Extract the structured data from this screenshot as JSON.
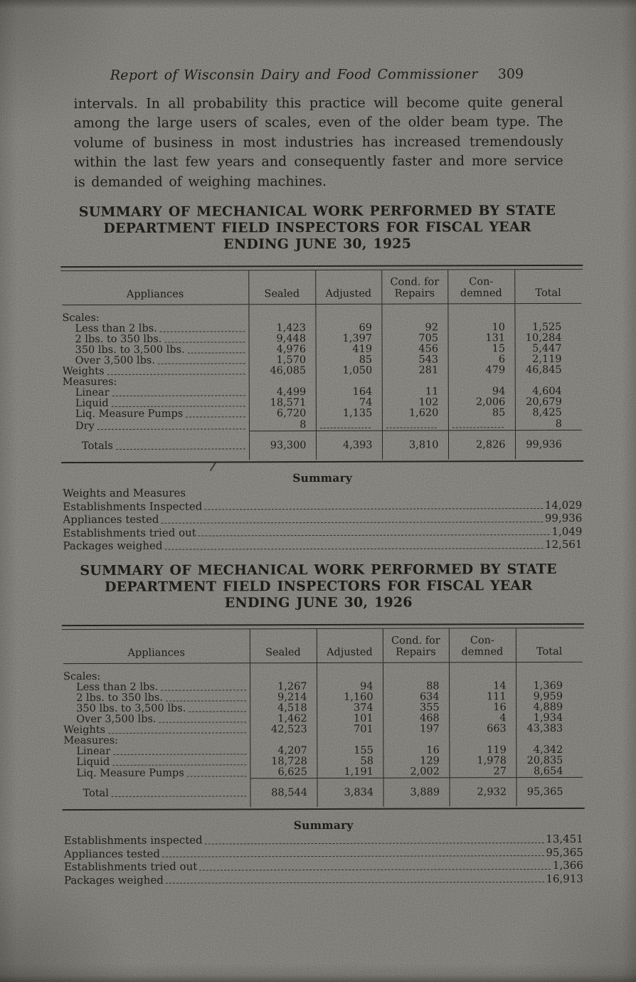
{
  "header": {
    "title": "Report of Wisconsin Dairy and Food Commissioner",
    "page_number": "309"
  },
  "intro_paragraph": "intervals.  In all probability this practice will become quite general among the large users of scales, even of the older beam type.  The volume of business in most industries has increased tremendously within the last few years and consequently faster and more service is demanded of weighing machines.",
  "tables": [
    {
      "caption": [
        "SUMMARY OF MECHANICAL WORK PERFORMED BY STATE",
        "DEPARTMENT FIELD INSPECTORS FOR FISCAL YEAR",
        "ENDING JUNE 30, 1925"
      ],
      "columns": [
        "Appliances",
        "Sealed",
        "Adjusted",
        "Cond. for\nRepairs",
        "Con-\ndemned",
        "Total"
      ],
      "rows": [
        {
          "label": "Scales:",
          "group": true
        },
        {
          "label": "Less than 2 lbs.",
          "indent": true,
          "values": [
            "1,423",
            "69",
            "92",
            "10",
            "1,525"
          ]
        },
        {
          "label": "2 lbs. to 350 lbs.",
          "indent": true,
          "values": [
            "9,448",
            "1,397",
            "705",
            "131",
            "10,284"
          ]
        },
        {
          "label": "350 lbs. to 3,500 lbs.",
          "indent": true,
          "values": [
            "4,976",
            "419",
            "456",
            "15",
            "5,447"
          ]
        },
        {
          "label": "Over 3,500 lbs.",
          "indent": true,
          "values": [
            "1,570",
            "85",
            "543",
            "6",
            "2,119"
          ]
        },
        {
          "label": "Weights",
          "values": [
            "46,085",
            "1,050",
            "281",
            "479",
            "46,845"
          ]
        },
        {
          "label": "Measures:",
          "group": true
        },
        {
          "label": "Linear",
          "indent": true,
          "values": [
            "4,499",
            "164",
            "11",
            "94",
            "4,604"
          ]
        },
        {
          "label": "Liquid",
          "indent": true,
          "values": [
            "18,571",
            "74",
            "102",
            "2,006",
            "20,679"
          ]
        },
        {
          "label": "Liq. Measure Pumps",
          "indent": true,
          "values": [
            "6,720",
            "1,135",
            "1,620",
            "85",
            "8,425"
          ]
        },
        {
          "label": "Dry",
          "indent": true,
          "values": [
            "8",
            null,
            null,
            null,
            "8"
          ]
        }
      ],
      "total_row": {
        "label": "Totals",
        "values": [
          "93,300",
          "4,393",
          "3,810",
          "2,826",
          "99,936"
        ]
      },
      "summary": {
        "heading": "Summary",
        "subheading": "Weights and Measures",
        "items": [
          [
            "Establishments Inspected",
            "14,029"
          ],
          [
            "Appliances tested",
            "99,936"
          ],
          [
            "Establishments tried out",
            "1,049"
          ],
          [
            "Packages weighed",
            "12,561"
          ]
        ]
      }
    },
    {
      "caption": [
        "SUMMARY OF MECHANICAL WORK PERFORMED BY STATE",
        "DEPARTMENT FIELD INSPECTORS FOR FISCAL YEAR",
        "ENDING JUNE 30, 1926"
      ],
      "columns": [
        "Appliances",
        "Sealed",
        "Adjusted",
        "Cond. for\nRepairs",
        "Con-\ndemned",
        "Total"
      ],
      "rows": [
        {
          "label": "Scales:",
          "group": true
        },
        {
          "label": "Less than 2 lbs.",
          "indent": true,
          "values": [
            "1,267",
            "94",
            "88",
            "14",
            "1,369"
          ]
        },
        {
          "label": "2 lbs. to 350 lbs.",
          "indent": true,
          "values": [
            "9,214",
            "1,160",
            "634",
            "111",
            "9,959"
          ]
        },
        {
          "label": "350 lbs. to 3,500 lbs.",
          "indent": true,
          "values": [
            "4,518",
            "374",
            "355",
            "16",
            "4,889"
          ]
        },
        {
          "label": "Over 3,500 lbs.",
          "indent": true,
          "values": [
            "1,462",
            "101",
            "468",
            "4",
            "1,934"
          ]
        },
        {
          "label": "Weights",
          "values": [
            "42,523",
            "701",
            "197",
            "663",
            "43,383"
          ]
        },
        {
          "label": "Measures:",
          "group": true
        },
        {
          "label": "Linear",
          "indent": true,
          "values": [
            "4,207",
            "155",
            "16",
            "119",
            "4,342"
          ]
        },
        {
          "label": "Liquid",
          "indent": true,
          "values": [
            "18,728",
            "58",
            "129",
            "1,978",
            "20,835"
          ]
        },
        {
          "label": "Liq. Measure Pumps",
          "indent": true,
          "values": [
            "6,625",
            "1,191",
            "2,002",
            "27",
            "8,654"
          ]
        }
      ],
      "total_row": {
        "label": "Total",
        "values": [
          "88,544",
          "3,834",
          "3,889",
          "2,932",
          "95,365"
        ]
      },
      "summary": {
        "heading": "Summary",
        "items": [
          [
            "Establishments inspected",
            "13,451"
          ],
          [
            "Appliances tested",
            "95,365"
          ],
          [
            "Establishments tried out",
            "1,366"
          ],
          [
            "Packages weighed",
            "16,913"
          ]
        ]
      }
    }
  ],
  "ink_color": "#2b2822",
  "paper_color": "#b4b2ab"
}
